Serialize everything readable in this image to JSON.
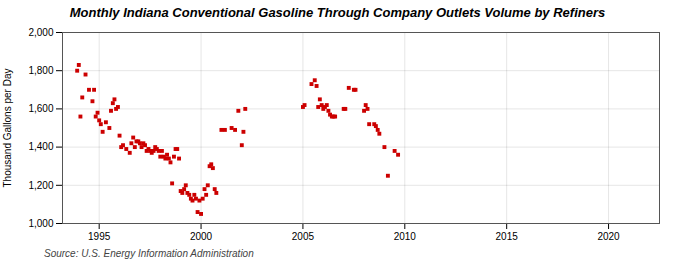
{
  "chart_data": {
    "type": "scatter",
    "title": "Monthly Indiana Conventional Gasoline Through Company Outlets Volume by Refiners",
    "ylabel": "Thousand Gallons per Day",
    "source": "Source: U.S. Energy Information Administration",
    "color": "#cc0000",
    "marker": "square",
    "grid": true,
    "xlim": [
      1993.2,
      2022.5
    ],
    "ylim": [
      1000,
      2000
    ],
    "xticks": [
      1995,
      2000,
      2005,
      2010,
      2015,
      2020
    ],
    "yticks": [
      {
        "value": 1000,
        "label": "1,000"
      },
      {
        "value": 1200,
        "label": "1,200"
      },
      {
        "value": 1400,
        "label": "1,400"
      },
      {
        "value": 1600,
        "label": "1,600"
      },
      {
        "value": 1800,
        "label": "1,800"
      },
      {
        "value": 2000,
        "label": "2,000"
      }
    ],
    "x": [
      1993.92,
      1994.0,
      1994.08,
      1994.17,
      1994.33,
      1994.5,
      1994.67,
      1994.75,
      1994.83,
      1994.92,
      1995.0,
      1995.08,
      1995.17,
      1995.33,
      1995.5,
      1995.58,
      1995.67,
      1995.75,
      1995.83,
      1995.92,
      1996.0,
      1996.08,
      1996.17,
      1996.33,
      1996.5,
      1996.58,
      1996.67,
      1996.75,
      1996.83,
      1996.92,
      1997.0,
      1997.08,
      1997.17,
      1997.25,
      1997.33,
      1997.42,
      1997.5,
      1997.58,
      1997.67,
      1997.75,
      1997.83,
      1997.92,
      1998.0,
      1998.08,
      1998.17,
      1998.25,
      1998.33,
      1998.42,
      1998.5,
      1998.58,
      1998.67,
      1998.75,
      1998.83,
      1998.92,
      1999.0,
      1999.08,
      1999.17,
      1999.25,
      1999.33,
      1999.42,
      1999.5,
      1999.58,
      1999.67,
      1999.75,
      1999.83,
      1999.92,
      2000.0,
      2000.08,
      2000.17,
      2000.25,
      2000.33,
      2000.42,
      2000.5,
      2000.58,
      2000.67,
      2000.75,
      2001.0,
      2001.17,
      2001.5,
      2001.67,
      2001.83,
      2002.0,
      2002.08,
      2002.17,
      2005.0,
      2005.08,
      2005.42,
      2005.58,
      2005.67,
      2005.75,
      2005.83,
      2005.92,
      2006.0,
      2006.08,
      2006.17,
      2006.25,
      2006.33,
      2006.42,
      2006.5,
      2006.58,
      2007.0,
      2007.08,
      2007.25,
      2007.5,
      2007.58,
      2008.0,
      2008.08,
      2008.17,
      2008.25,
      2008.5,
      2008.58,
      2008.67,
      2008.75,
      2009.0,
      2009.17,
      2009.5,
      2009.67
    ],
    "values": [
      1800,
      1830,
      1560,
      1660,
      1780,
      1700,
      1640,
      1700,
      1560,
      1580,
      1540,
      1520,
      1480,
      1530,
      1500,
      1590,
      1630,
      1650,
      1600,
      1610,
      1460,
      1400,
      1410,
      1390,
      1370,
      1420,
      1450,
      1400,
      1430,
      1430,
      1420,
      1400,
      1420,
      1410,
      1380,
      1390,
      1380,
      1370,
      1380,
      1400,
      1390,
      1380,
      1350,
      1380,
      1350,
      1340,
      1360,
      1340,
      1320,
      1210,
      1350,
      1390,
      1390,
      1340,
      1170,
      1160,
      1180,
      1200,
      1160,
      1150,
      1130,
      1120,
      1150,
      1130,
      1060,
      1120,
      1050,
      1130,
      1180,
      1150,
      1200,
      1300,
      1310,
      1290,
      1180,
      1160,
      1490,
      1490,
      1500,
      1490,
      1590,
      1410,
      1480,
      1600,
      1610,
      1620,
      1730,
      1750,
      1720,
      1610,
      1650,
      1620,
      1600,
      1610,
      1620,
      1590,
      1570,
      1560,
      1560,
      1560,
      1600,
      1600,
      1710,
      1700,
      1700,
      1590,
      1620,
      1600,
      1520,
      1520,
      1510,
      1490,
      1470,
      1400,
      1250,
      1380,
      1360
    ]
  }
}
